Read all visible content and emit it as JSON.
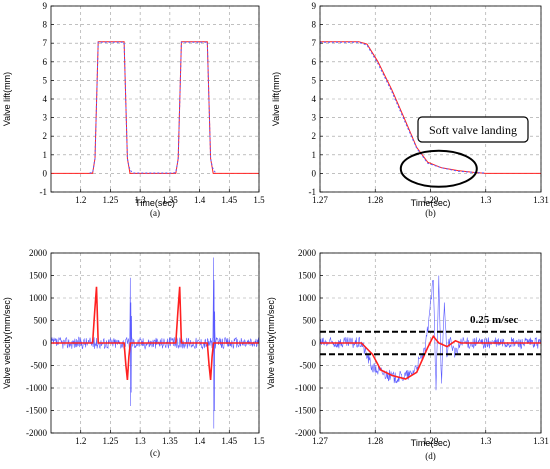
{
  "chart_data": [
    {
      "id": "a",
      "type": "line",
      "caption": "(a)",
      "xlabel": "Time(sec)",
      "ylabel": "Valve lift(mm)",
      "xlim": [
        1.15,
        1.5
      ],
      "ylim": [
        -1,
        9
      ],
      "xticks": [
        "1.2",
        "1.25",
        "1.3",
        "1.35",
        "1.4",
        "1.45",
        "1.5"
      ],
      "yticks": [
        "-1",
        "0",
        "1",
        "2",
        "3",
        "4",
        "5",
        "6",
        "7",
        "8",
        "9"
      ],
      "grid": true,
      "colors": {
        "reference": "#ff3030",
        "measured": "#5555ff"
      },
      "series": [
        {
          "role": "reference",
          "x": [
            1.15,
            1.22,
            1.224,
            1.2295,
            1.273,
            1.2785,
            1.283,
            1.29,
            1.36,
            1.364,
            1.3695,
            1.413,
            1.4185,
            1.423,
            1.5
          ],
          "y": [
            0,
            0,
            0.8,
            7.08,
            7.08,
            0.8,
            0,
            0,
            0,
            0.8,
            7.08,
            7.08,
            0.8,
            0,
            0
          ]
        },
        {
          "role": "measured",
          "x": [
            1.215,
            1.22,
            1.224,
            1.2295,
            1.273,
            1.2785,
            1.2815,
            1.284,
            1.2875,
            1.355,
            1.36,
            1.364,
            1.3695,
            1.413,
            1.4185,
            1.4215,
            1.424,
            1.4275
          ],
          "y": [
            0.02,
            0.05,
            0.8,
            7.05,
            7.05,
            0.8,
            0.35,
            0.15,
            0.02,
            0.02,
            0.05,
            0.8,
            7.05,
            7.05,
            0.8,
            0.35,
            0.15,
            0.02
          ]
        }
      ]
    },
    {
      "id": "b",
      "type": "line",
      "caption": "(b)",
      "xlabel": "Time(sec)",
      "ylabel": "Valve lift(mm)",
      "xlim": [
        1.27,
        1.31
      ],
      "ylim": [
        -1,
        9
      ],
      "xticks": [
        "1.27",
        "1.28",
        "1.29",
        "1.3",
        "1.31"
      ],
      "yticks": [
        "-1",
        "0",
        "1",
        "2",
        "3",
        "4",
        "5",
        "6",
        "7",
        "8",
        "9"
      ],
      "grid": true,
      "annotation": {
        "text": "Soft valve landing",
        "ellipse_center": [
          1.2915,
          0.25
        ]
      },
      "series": [
        {
          "role": "reference",
          "x": [
            1.27,
            1.277,
            1.2785,
            1.2805,
            1.283,
            1.2855,
            1.2875,
            1.2895,
            1.292,
            1.295,
            1.298,
            1.3,
            1.31
          ],
          "y": [
            7.08,
            7.08,
            6.95,
            6.0,
            4.5,
            2.8,
            1.4,
            0.6,
            0.3,
            0.15,
            0.05,
            0,
            0
          ]
        },
        {
          "role": "measured",
          "x": [
            1.27,
            1.277,
            1.2785,
            1.2805,
            1.283,
            1.2855,
            1.2875,
            1.2895,
            1.292,
            1.295,
            1.298,
            1.3
          ],
          "y": [
            7.05,
            7.05,
            6.9,
            5.9,
            4.4,
            2.7,
            1.35,
            0.55,
            0.3,
            0.12,
            0.05,
            0.02
          ]
        }
      ]
    },
    {
      "id": "c",
      "type": "line",
      "caption": "(c)",
      "xlabel": "",
      "ylabel": "Valve velocity(mm/sec)",
      "xlim": [
        1.15,
        1.5
      ],
      "ylim": [
        -2000,
        2000
      ],
      "xticks": [
        "1.2",
        "1.25",
        "1.3",
        "1.35",
        "1.4",
        "1.45",
        "1.5"
      ],
      "yticks": [
        "-2000",
        "-1500",
        "-1000",
        "-500",
        "0",
        "500",
        "1000",
        "1500",
        "2000"
      ],
      "grid": true,
      "series": [
        {
          "role": "measured",
          "x": [
            1.15,
            1.283,
            1.2835,
            1.284,
            1.2845,
            1.285,
            1.2855,
            1.286,
            1.29,
            1.423,
            1.4235,
            1.424,
            1.4245,
            1.425,
            1.4255,
            1.426,
            1.43,
            1.5
          ],
          "y": [
            0,
            0,
            1450,
            -1400,
            900,
            -1100,
            600,
            0,
            0,
            0,
            1900,
            -1900,
            1400,
            -1500,
            700,
            0,
            0,
            0
          ]
        },
        {
          "role": "reference",
          "x": [
            1.15,
            1.22,
            1.2235,
            1.2265,
            1.2295,
            1.273,
            1.276,
            1.2785,
            1.281,
            1.2835,
            1.29,
            1.36,
            1.3635,
            1.3665,
            1.3695,
            1.413,
            1.416,
            1.4185,
            1.421,
            1.4235,
            1.5
          ],
          "y": [
            0,
            0,
            700,
            1250,
            0,
            0,
            -500,
            -820,
            -300,
            0,
            0,
            0,
            700,
            1250,
            0,
            0,
            -500,
            -820,
            -300,
            0,
            0
          ]
        }
      ]
    },
    {
      "id": "d",
      "type": "line",
      "caption": "(d)",
      "xlabel": "Time(sec)",
      "ylabel": "Valve velocity(mm/sec)",
      "xlim": [
        1.27,
        1.31
      ],
      "ylim": [
        -2000,
        2000
      ],
      "xticks": [
        "1.27",
        "1.28",
        "1.29",
        "1.3",
        "1.31"
      ],
      "yticks": [
        "-2000",
        "-1500",
        "-1000",
        "-500",
        "0",
        "500",
        "1000",
        "1500",
        "2000"
      ],
      "grid": true,
      "annotation": {
        "text": "0.25 m/sec",
        "hlines": [
          250,
          -250
        ]
      },
      "series": [
        {
          "role": "measured",
          "x": [
            1.27,
            1.2775,
            1.2795,
            1.2835,
            1.2865,
            1.289,
            1.2905,
            1.291,
            1.2915,
            1.292,
            1.2925,
            1.293,
            1.2935,
            1.2945,
            1.2955,
            1.31
          ],
          "y": [
            0,
            0,
            -550,
            -780,
            -700,
            -200,
            1400,
            -1050,
            1500,
            -900,
            900,
            -300,
            100,
            -250,
            0,
            0
          ]
        },
        {
          "role": "reference",
          "x": [
            1.27,
            1.2775,
            1.2795,
            1.281,
            1.283,
            1.2855,
            1.2875,
            1.2895,
            1.2905,
            1.2915,
            1.293,
            1.2945,
            1.2955,
            1.31
          ],
          "y": [
            0,
            0,
            -250,
            -600,
            -720,
            -800,
            -650,
            -100,
            150,
            0,
            -80,
            50,
            0,
            0
          ]
        }
      ]
    }
  ]
}
